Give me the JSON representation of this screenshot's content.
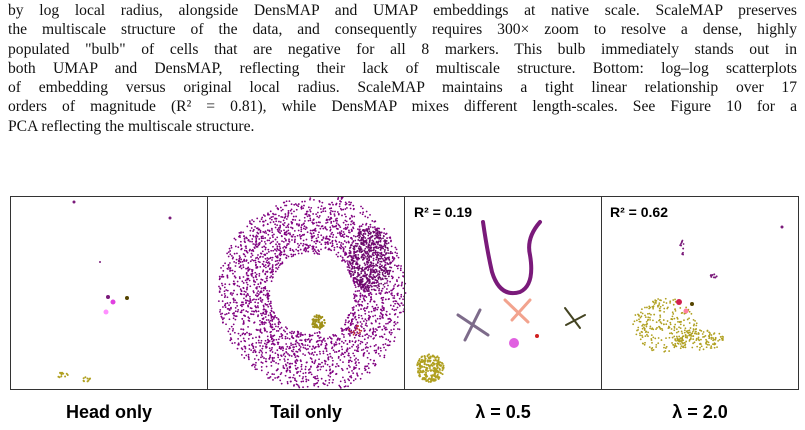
{
  "caption": {
    "lines": [
      "by log local radius, alongside DensMAP and UMAP embeddings at native scale. ScaleMAP preserves",
      "the multiscale structure of the data, and consequently requires 300× zoom to resolve a dense, highly",
      "populated \"bulb\" of cells that are negative for all 8 markers. This bulb immediately stands out in",
      "both UMAP and DensMAP, reflecting their lack of multiscale structure. Bottom: log–log scatterplots",
      "of embedding versus original local radius. ScaleMAP maintains a tight linear relationship over 17",
      "orders of magnitude (R² = 0.81), while DensMAP mixes different length-scales. See Figure 10 for a",
      "PCA reflecting the multiscale structure."
    ]
  },
  "panels": [
    {
      "label": "Head only"
    },
    {
      "label": "Tail only"
    },
    {
      "label": "λ = 0.5",
      "annotation": "R² = 0.19"
    },
    {
      "label": "λ = 2.0",
      "annotation": "R² = 0.62"
    }
  ]
}
